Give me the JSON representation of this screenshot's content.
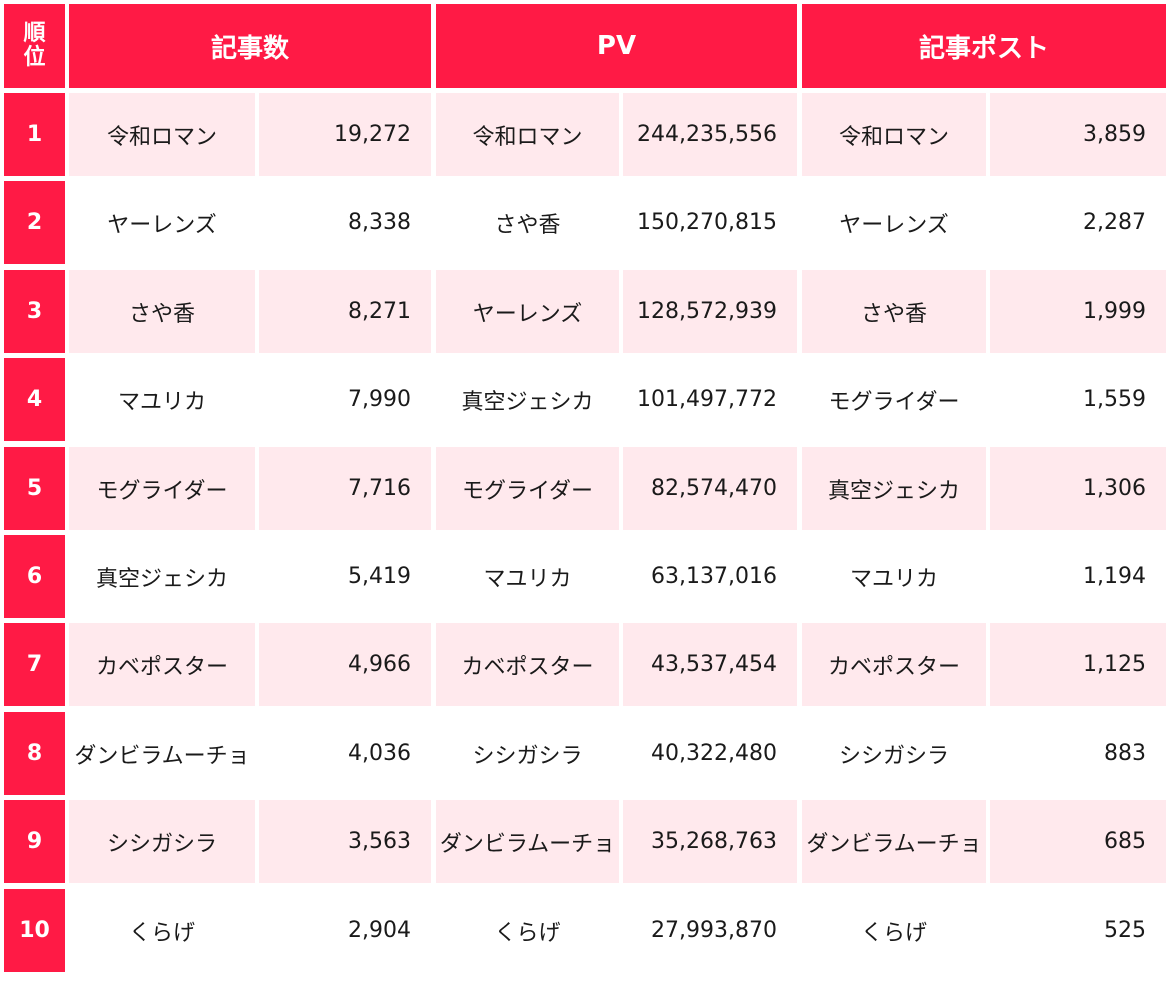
{
  "headers": {
    "rank": "順位",
    "articles": "記事数",
    "pv": "PV",
    "posts": "記事ポスト"
  },
  "rows": [
    {
      "rank": "1",
      "articles_name": "令和ロマン",
      "articles_value": "19,272",
      "pv_name": "令和ロマン",
      "pv_value": "244,235,556",
      "posts_name": "令和ロマン",
      "posts_value": "3,859"
    },
    {
      "rank": "2",
      "articles_name": "ヤーレンズ",
      "articles_value": "8,338",
      "pv_name": "さや香",
      "pv_value": "150,270,815",
      "posts_name": "ヤーレンズ",
      "posts_value": "2,287"
    },
    {
      "rank": "3",
      "articles_name": "さや香",
      "articles_value": "8,271",
      "pv_name": "ヤーレンズ",
      "pv_value": "128,572,939",
      "posts_name": "さや香",
      "posts_value": "1,999"
    },
    {
      "rank": "4",
      "articles_name": "マユリカ",
      "articles_value": "7,990",
      "pv_name": "真空ジェシカ",
      "pv_value": "101,497,772",
      "posts_name": "モグライダー",
      "posts_value": "1,559"
    },
    {
      "rank": "5",
      "articles_name": "モグライダー",
      "articles_value": "7,716",
      "pv_name": "モグライダー",
      "pv_value": "82,574,470",
      "posts_name": "真空ジェシカ",
      "posts_value": "1,306"
    },
    {
      "rank": "6",
      "articles_name": "真空ジェシカ",
      "articles_value": "5,419",
      "pv_name": "マユリカ",
      "pv_value": "63,137,016",
      "posts_name": "マユリカ",
      "posts_value": "1,194"
    },
    {
      "rank": "7",
      "articles_name": "カベポスター",
      "articles_value": "4,966",
      "pv_name": "カベポスター",
      "pv_value": "43,537,454",
      "posts_name": "カベポスター",
      "posts_value": "1,125"
    },
    {
      "rank": "8",
      "articles_name": "ダンビラムーチョ",
      "articles_value": "4,036",
      "pv_name": "シシガシラ",
      "pv_value": "40,322,480",
      "posts_name": "シシガシラ",
      "posts_value": "883"
    },
    {
      "rank": "9",
      "articles_name": "シシガシラ",
      "articles_value": "3,563",
      "pv_name": "ダンビラムーチョ",
      "pv_value": "35,268,763",
      "posts_name": "ダンビラムーチョ",
      "posts_value": "685"
    },
    {
      "rank": "10",
      "articles_name": "くらげ",
      "articles_value": "2,904",
      "pv_name": "くらげ",
      "pv_value": "27,993,870",
      "posts_name": "くらげ",
      "posts_value": "525"
    }
  ]
}
